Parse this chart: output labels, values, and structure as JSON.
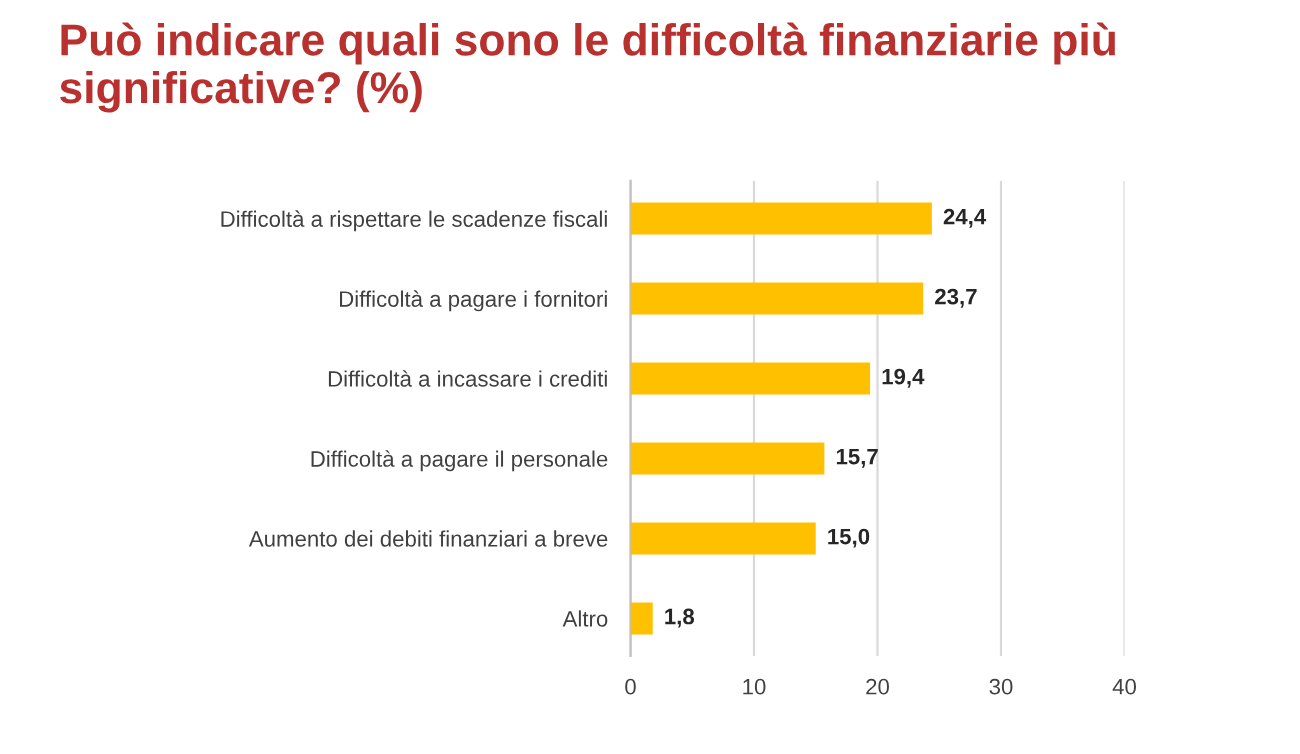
{
  "chart_data": {
    "type": "bar",
    "orientation": "horizontal",
    "title": "Può indicare quali sono le difficoltà finanziarie più significative? (%)",
    "categories": [
      "Difficoltà a rispettare le scadenze fiscali",
      "Difficoltà a pagare i fornitori",
      "Difficoltà a incassare i crediti",
      "Difficoltà a pagare il personale",
      "Aumento dei debiti finanziari a breve",
      "Altro"
    ],
    "values": [
      24.4,
      23.7,
      19.4,
      15.7,
      15.0,
      1.8
    ],
    "value_labels": [
      "24,4",
      "23,7",
      "19,4",
      "15,7",
      "15,0",
      "1,8"
    ],
    "color": "#ffc000",
    "xlim": [
      0,
      40
    ],
    "xticks": [
      0,
      10,
      20,
      30,
      40
    ],
    "grid": "x"
  }
}
